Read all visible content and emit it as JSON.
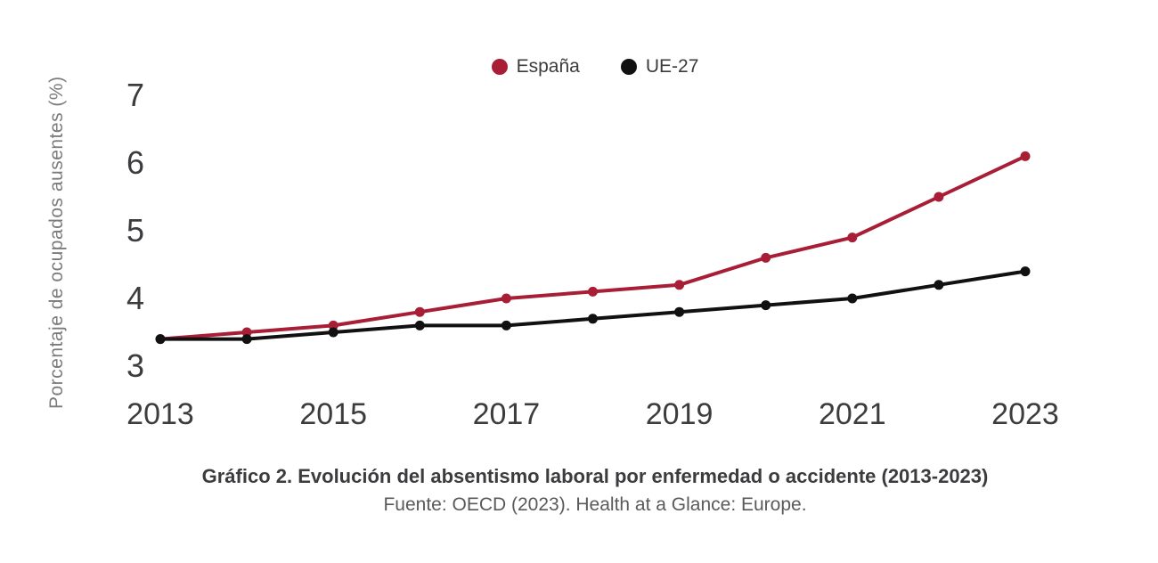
{
  "chart_data": {
    "type": "line",
    "title": "Gráfico 2. Evolución del absentismo laboral por enfermedad o accidente (2013-2023)",
    "xlabel": "",
    "ylabel": "Porcentaje de ocupados ausentes (%)",
    "x": [
      2013,
      2014,
      2015,
      2016,
      2017,
      2018,
      2019,
      2020,
      2021,
      2022,
      2023
    ],
    "series": [
      {
        "name": "España",
        "color": "#A81E36",
        "values": [
          3.4,
          3.5,
          3.6,
          3.8,
          4.0,
          4.1,
          4.2,
          4.6,
          4.9,
          5.5,
          6.1
        ]
      },
      {
        "name": "UE-27",
        "color": "#111111",
        "values": [
          3.4,
          3.4,
          3.5,
          3.6,
          3.6,
          3.7,
          3.8,
          3.9,
          4.0,
          4.2,
          4.4
        ]
      }
    ],
    "yticks": [
      3,
      4,
      5,
      6,
      7
    ],
    "xticks": [
      2013,
      2015,
      2017,
      2019,
      2021,
      2023
    ],
    "ylim": [
      3,
      7
    ],
    "grid": false,
    "axis_lines": false,
    "legend_position": "top-center",
    "marker": "circle"
  },
  "caption": {
    "title": "Gráfico 2. Evolución del absentismo laboral por enfermedad o accidente (2013-2023)",
    "source": "Fuente: OECD (2023). Health at a Glance: Europe."
  }
}
